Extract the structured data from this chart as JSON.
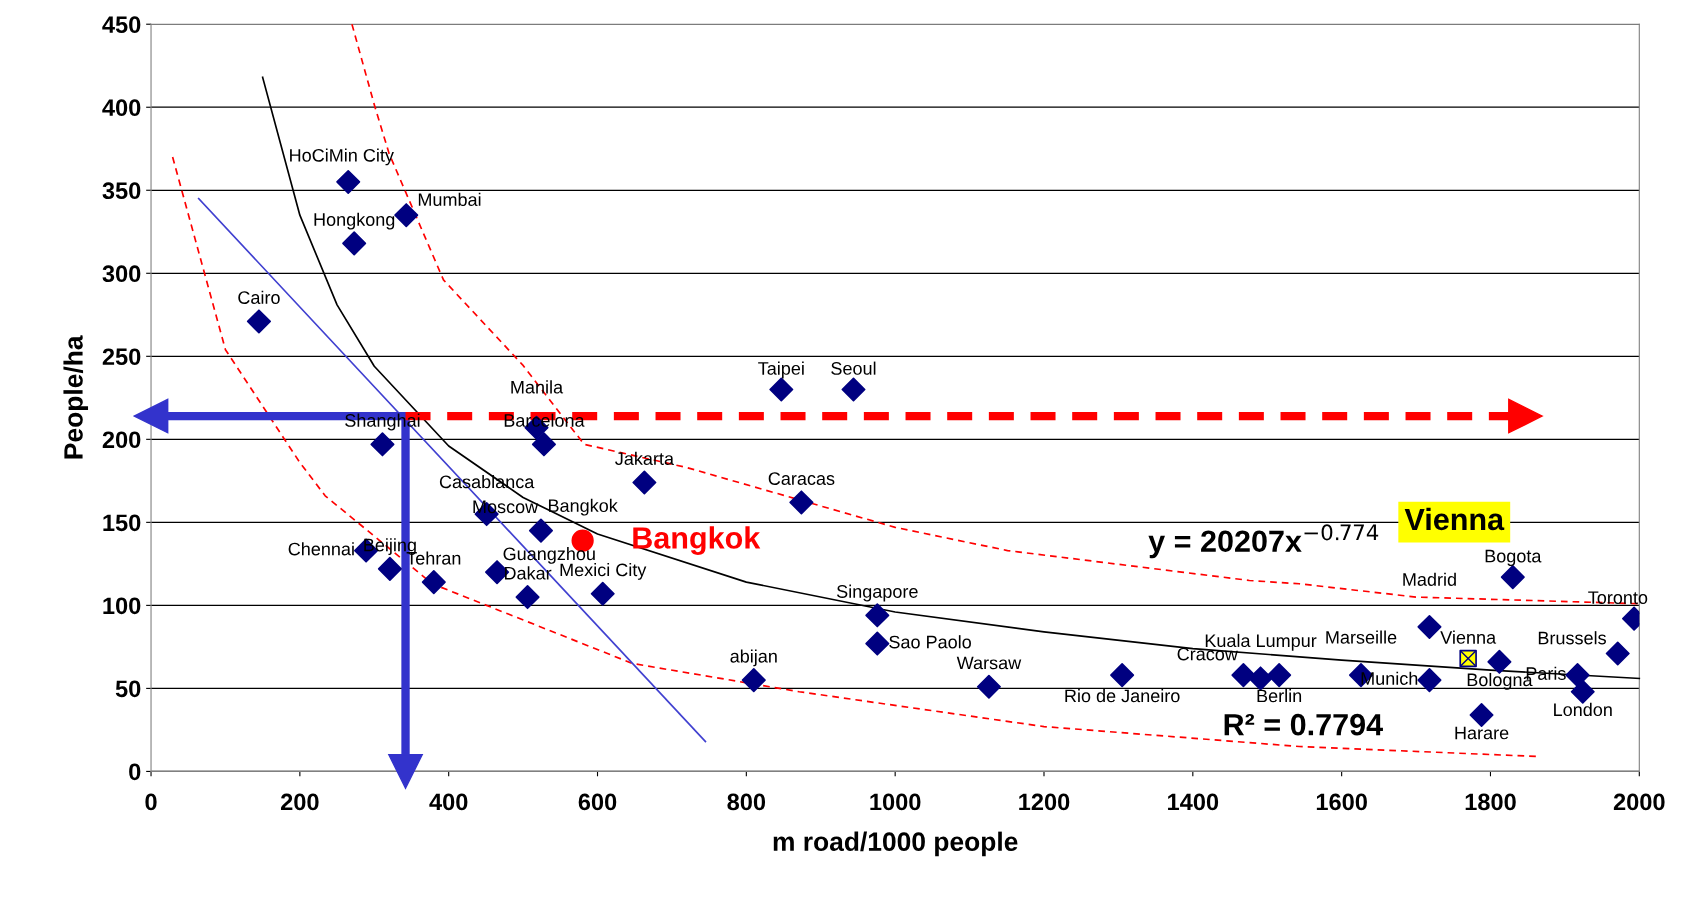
{
  "chart_data": {
    "type": "scatter",
    "xlabel": "m road/1000 people",
    "ylabel": "People/ha",
    "xlim": [
      0,
      2000
    ],
    "xticks": [
      0,
      200,
      400,
      600,
      800,
      1000,
      1200,
      1400,
      1600,
      1800,
      2000
    ],
    "ylim": [
      0,
      450
    ],
    "yticks": [
      0,
      50,
      100,
      150,
      200,
      250,
      300,
      350,
      400,
      450
    ],
    "grid": "y",
    "series": [
      {
        "marker": "diamond",
        "color": "#000080",
        "x": [
          145,
          265,
          343,
          273,
          311,
          518,
          528,
          663,
          847,
          944,
          874,
          451,
          524,
          289,
          321,
          380,
          465,
          506,
          607,
          810,
          976,
          976,
          1126,
          1305,
          1468,
          1491,
          1516,
          1626,
          1718,
          1718,
          1788,
          1830,
          1812,
          1917,
          1924,
          1971,
          1993
        ],
        "values": [
          271,
          355,
          335,
          318,
          197,
          207,
          197,
          174,
          230,
          230,
          162,
          155,
          145,
          133,
          122,
          114,
          120,
          105,
          107,
          55,
          94,
          77,
          51,
          58,
          58,
          56,
          58,
          58,
          55,
          87,
          34,
          117,
          66,
          58,
          48,
          71,
          92
        ]
      },
      {
        "type": "scatter",
        "marker": "circle",
        "color": "#ff0000",
        "name": "Bangkok",
        "x": [
          580
        ],
        "values": [
          139
        ]
      },
      {
        "type": "scatter",
        "marker": "square",
        "color": "#ffff00",
        "name": "Vienna",
        "x": [
          1770
        ],
        "values": [
          68
        ]
      },
      {
        "type": "line",
        "color": "#000000",
        "line_style": "solid",
        "x": [
          150,
          200,
          250,
          300,
          400,
          500,
          600,
          800,
          1000,
          1200,
          1400,
          1600,
          1800,
          2000
        ],
        "values": [
          418,
          335,
          281,
          244,
          196,
          165,
          143,
          114,
          96,
          84,
          74,
          67,
          61,
          56
        ]
      },
      {
        "type": "line",
        "color": "#ff0000",
        "line_style": "dashed",
        "x": [
          270,
          301,
          320,
          393,
          499,
          582,
          720,
          1000,
          1151,
          1476,
          1543,
          1700,
          2000
        ],
        "values": [
          450,
          400,
          372,
          296,
          245,
          197,
          183,
          147,
          133,
          115,
          113,
          105,
          101
        ]
      },
      {
        "type": "line",
        "color": "#ff0000",
        "line_style": "dashed",
        "x": [
          29,
          100,
          200,
          234,
          378,
          647,
          871,
          1200,
          1543,
          1862
        ],
        "values": [
          370,
          254,
          186,
          166,
          113,
          65,
          48,
          27,
          15,
          9
        ]
      },
      {
        "type": "line",
        "color": "#4040d0",
        "line_style": "solid",
        "x": [
          64,
          745
        ],
        "values": [
          345,
          18
        ]
      },
      {
        "type": "line",
        "color": "#3333cc",
        "line_style": "solid",
        "marker": "triangle",
        "x": [
          342,
          0
        ],
        "values": [
          214,
          214
        ]
      },
      {
        "type": "line",
        "color": "#3333cc",
        "line_style": "solid",
        "marker": "triangle",
        "x": [
          342,
          342
        ],
        "values": [
          214,
          0
        ]
      },
      {
        "type": "line",
        "color": "#ff0000",
        "line_style": "dashed",
        "marker": "triangle",
        "x": [
          342,
          1847
        ],
        "values": [
          214,
          214
        ]
      }
    ],
    "annotations": [
      {
        "text": "Cairo",
        "x": 145,
        "y": 271
      },
      {
        "text": "HoCiMin City",
        "x": 265,
        "y": 355
      },
      {
        "text": "Mumbai",
        "x": 343,
        "y": 335
      },
      {
        "text": "Hongkong",
        "x": 273,
        "y": 318
      },
      {
        "text": "Shanghai",
        "x": 311,
        "y": 197
      },
      {
        "text": "Manila",
        "x": 518,
        "y": 207
      },
      {
        "text": "Barcelona",
        "x": 528,
        "y": 197
      },
      {
        "text": "Jakarta",
        "x": 663,
        "y": 174
      },
      {
        "text": "Taipei",
        "x": 847,
        "y": 230
      },
      {
        "text": "Seoul",
        "x": 944,
        "y": 230
      },
      {
        "text": "Caracas",
        "x": 874,
        "y": 162
      },
      {
        "text": "Casablanca",
        "x": 451,
        "y": 155
      },
      {
        "text": "Moscow",
        "x": 524,
        "y": 145
      },
      {
        "text": "Chennai",
        "x": 289,
        "y": 133
      },
      {
        "text": "Beijing",
        "x": 321,
        "y": 122
      },
      {
        "text": "Tehran",
        "x": 380,
        "y": 114
      },
      {
        "text": "Guangzhou",
        "x": 465,
        "y": 120
      },
      {
        "text": "Dakar",
        "x": 506,
        "y": 105
      },
      {
        "text": "Mexici City",
        "x": 607,
        "y": 107
      },
      {
        "text": "abijan",
        "x": 810,
        "y": 55
      },
      {
        "text": "Singapore",
        "x": 976,
        "y": 94
      },
      {
        "text": "Sao Paolo",
        "x": 976,
        "y": 77
      },
      {
        "text": "Warsaw",
        "x": 1126,
        "y": 51
      },
      {
        "text": "Rio de Janeiro",
        "x": 1305,
        "y": 58
      },
      {
        "text": "Cracow",
        "x": 1468,
        "y": 58
      },
      {
        "text": "Kuala Lumpur",
        "x": 1491,
        "y": 56
      },
      {
        "text": "Berlin",
        "x": 1516,
        "y": 58
      },
      {
        "text": "Marseille",
        "x": 1626,
        "y": 58
      },
      {
        "text": "Munich",
        "x": 1718,
        "y": 55
      },
      {
        "text": "Madrid",
        "x": 1718,
        "y": 87
      },
      {
        "text": "Harare",
        "x": 1788,
        "y": 34
      },
      {
        "text": "Bogota",
        "x": 1830,
        "y": 117
      },
      {
        "text": "Bologna",
        "x": 1812,
        "y": 66
      },
      {
        "text": "Paris",
        "x": 1917,
        "y": 58
      },
      {
        "text": "London",
        "x": 1924,
        "y": 48
      },
      {
        "text": "Brussels",
        "x": 1971,
        "y": 71
      },
      {
        "text": "Toronto",
        "x": 1993,
        "y": 92
      },
      {
        "text": "Vienna",
        "x": 1770,
        "y": 68
      },
      {
        "text": "Bangkok",
        "x": 580,
        "y": 139
      },
      "y = 20207x$^{−0.774}$",
      "R² = 0.7794"
    ]
  }
}
